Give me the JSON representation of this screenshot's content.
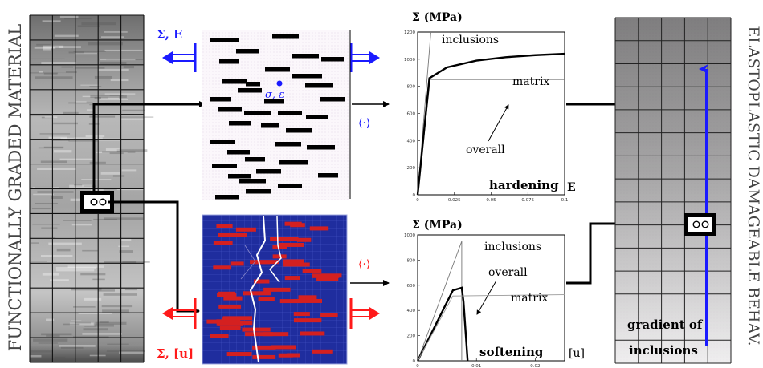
{
  "left_label": "FUNCTIONALLY GRADED MATERIAL",
  "right_label": "ELASTOPLASTIC DAMAGEABLE BEHAV.",
  "top_arrow_label": "Σ, E",
  "bottom_arrow_label": "Σ, [u]",
  "micro_point_label": "σ, ε",
  "average_operator": "⟨·⟩",
  "gradient_label_line1": "gradient of",
  "gradient_label_line2": "inclusions",
  "colors": {
    "blue": "#1a1aff",
    "red": "#ff1a1a",
    "mesh_blue": "#1f2d9e",
    "inclusion_red": "#d42020"
  },
  "chart_data": [
    {
      "type": "line",
      "title": "",
      "ylabel": "Σ (MPa)",
      "xlabel": "E",
      "annotation": "hardening",
      "x_ticks": [
        "0",
        "0.025",
        "0.05",
        "0.075",
        "0.1"
      ],
      "y_ticks": [
        "0",
        "200",
        "400",
        "600",
        "800",
        "1000",
        "1200"
      ],
      "xlim": [
        0,
        0.1
      ],
      "ylim": [
        0,
        1200
      ],
      "series": [
        {
          "name": "inclusions",
          "x": [
            0,
            0.009
          ],
          "y": [
            0,
            1200
          ]
        },
        {
          "name": "matrix",
          "x": [
            0,
            0.0085,
            0.1
          ],
          "y": [
            0,
            850,
            850
          ]
        },
        {
          "name": "overall",
          "x": [
            0,
            0.008,
            0.02,
            0.04,
            0.06,
            0.08,
            0.1
          ],
          "y": [
            0,
            860,
            940,
            990,
            1015,
            1030,
            1040
          ]
        }
      ]
    },
    {
      "type": "line",
      "title": "",
      "ylabel": "Σ (MPa)",
      "xlabel": "[u]",
      "annotation": "softening",
      "x_ticks": [
        "0",
        "0.01",
        "0.02"
      ],
      "y_ticks": [
        "0",
        "200",
        "400",
        "600",
        "800",
        "1000"
      ],
      "xlim": [
        0,
        0.025
      ],
      "ylim": [
        0,
        1000
      ],
      "series": [
        {
          "name": "inclusions",
          "x": [
            0,
            0.0075,
            0.0075
          ],
          "y": [
            0,
            950,
            0
          ]
        },
        {
          "name": "overall",
          "x": [
            0,
            0.006,
            0.0075,
            0.0078,
            0.0085
          ],
          "y": [
            0,
            560,
            580,
            470,
            0
          ]
        },
        {
          "name": "matrix",
          "x": [
            0,
            0.006,
            0.025
          ],
          "y": [
            0,
            515,
            525
          ]
        }
      ]
    }
  ]
}
